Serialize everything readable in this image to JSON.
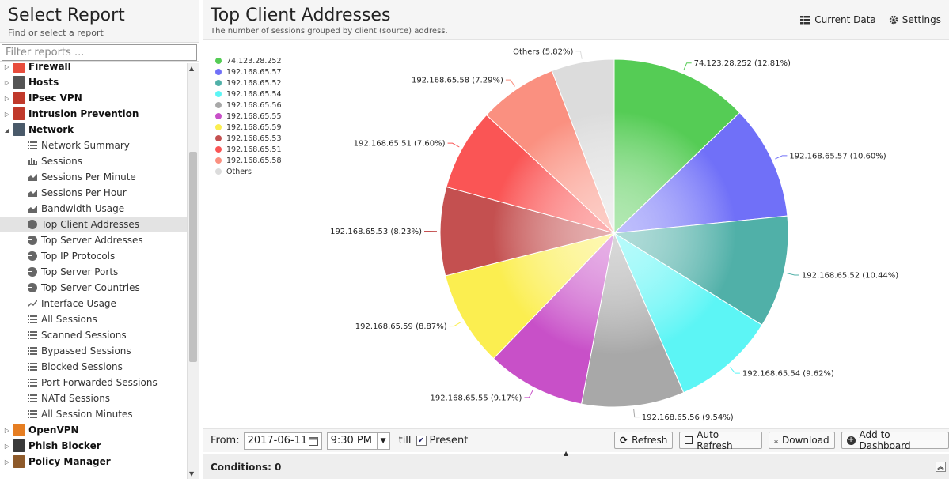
{
  "sidebar": {
    "title": "Select Report",
    "subtitle": "Find or select a report",
    "filter_placeholder": "Filter reports ...",
    "categories_top": [
      {
        "label": "Firewall",
        "color": "#e74c3c"
      },
      {
        "label": "Hosts",
        "color": "#555555"
      },
      {
        "label": "IPsec VPN",
        "color": "#c0392b"
      },
      {
        "label": "Intrusion Prevention",
        "color": "#c0392b"
      },
      {
        "label": "Network",
        "color": "#4a5a6a"
      }
    ],
    "network_items": [
      {
        "label": "Network Summary",
        "icon": "list-icon"
      },
      {
        "label": "Sessions",
        "icon": "bar-chart-icon"
      },
      {
        "label": "Sessions Per Minute",
        "icon": "area-chart-icon"
      },
      {
        "label": "Sessions Per Hour",
        "icon": "area-chart-icon"
      },
      {
        "label": "Bandwidth Usage",
        "icon": "area-chart-icon"
      },
      {
        "label": "Top Client Addresses",
        "icon": "pie-chart-icon"
      },
      {
        "label": "Top Server Addresses",
        "icon": "pie-chart-icon"
      },
      {
        "label": "Top IP Protocols",
        "icon": "pie-chart-icon"
      },
      {
        "label": "Top Server Ports",
        "icon": "pie-chart-icon"
      },
      {
        "label": "Top Server Countries",
        "icon": "pie-chart-icon"
      },
      {
        "label": "Interface Usage",
        "icon": "line-chart-icon"
      },
      {
        "label": "All Sessions",
        "icon": "list-icon"
      },
      {
        "label": "Scanned Sessions",
        "icon": "list-icon"
      },
      {
        "label": "Bypassed Sessions",
        "icon": "list-icon"
      },
      {
        "label": "Blocked Sessions",
        "icon": "list-icon"
      },
      {
        "label": "Port Forwarded Sessions",
        "icon": "list-icon"
      },
      {
        "label": "NATd Sessions",
        "icon": "list-icon"
      },
      {
        "label": "All Session Minutes",
        "icon": "list-icon"
      }
    ],
    "categories_bottom": [
      {
        "label": "OpenVPN",
        "color": "#e67e22"
      },
      {
        "label": "Phish Blocker",
        "color": "#3a3a3a"
      },
      {
        "label": "Policy Manager",
        "color": "#8e5a2a"
      }
    ],
    "selected": "Top Client Addresses"
  },
  "header": {
    "title": "Top Client Addresses",
    "description": "The number of sessions grouped by client (source) address.",
    "current_data_label": "Current Data",
    "settings_label": "Settings"
  },
  "chart_data": {
    "type": "pie",
    "title": "",
    "slices": [
      {
        "label": "74.123.28.252",
        "value": 12.81,
        "display": "74.123.28.252 (12.81%)",
        "color": "#55cc55"
      },
      {
        "label": "192.168.65.57",
        "value": 10.6,
        "display": "192.168.65.57 (10.60%)",
        "color": "#7070f8"
      },
      {
        "label": "192.168.65.52",
        "value": 10.44,
        "display": "192.168.65.52 (10.44%)",
        "color": "#50b0a8"
      },
      {
        "label": "192.168.65.54",
        "value": 9.62,
        "display": "192.168.65.54 (9.62%)",
        "color": "#5cf5f5"
      },
      {
        "label": "192.168.65.56",
        "value": 9.54,
        "display": "192.168.65.56 (9.54%)",
        "color": "#a8a8a8"
      },
      {
        "label": "192.168.65.55",
        "value": 9.17,
        "display": "192.168.65.55 (9.17%)",
        "color": "#c850c8"
      },
      {
        "label": "192.168.65.59",
        "value": 8.87,
        "display": "192.168.65.59 (8.87%)",
        "color": "#fbee50"
      },
      {
        "label": "192.168.65.53",
        "value": 8.23,
        "display": "192.168.65.53 (8.23%)",
        "color": "#c45050"
      },
      {
        "label": "192.168.65.51",
        "value": 7.6,
        "display": "192.168.65.51 (7.60%)",
        "color": "#fa5555"
      },
      {
        "label": "192.168.65.58",
        "value": 7.29,
        "display": "192.168.65.58 (7.29%)",
        "color": "#fa9080"
      },
      {
        "label": "Others",
        "value": 5.82,
        "display": "Others (5.82%)",
        "color": "#dcdcdc"
      }
    ],
    "legend_placement": "top-left"
  },
  "bottom": {
    "from_label": "From:",
    "date": "2017-06-11",
    "time": "9:30 PM",
    "till_label": "till",
    "present_label": "Present",
    "present_checked": true,
    "refresh_label": "Refresh",
    "auto_refresh_label": "Auto Refresh",
    "download_label": "Download",
    "add_dashboard_label": "Add to Dashboard"
  },
  "conditions_label": "Conditions: 0"
}
